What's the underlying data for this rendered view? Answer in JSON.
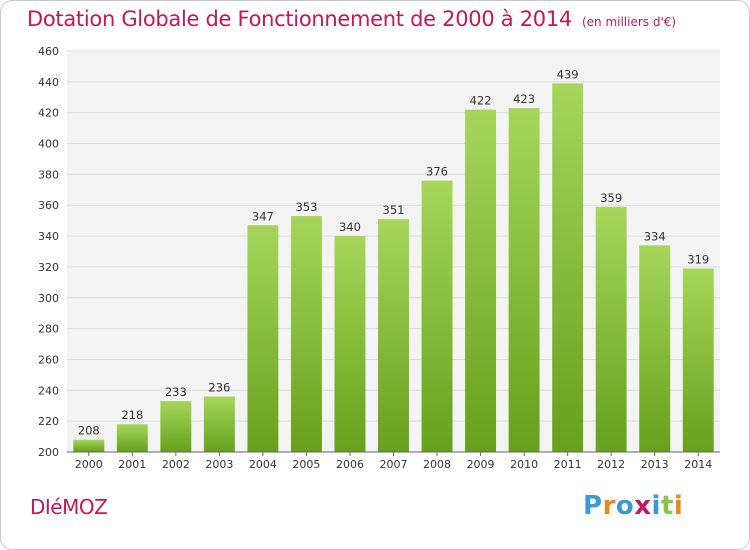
{
  "header": {
    "title": "Dotation Globale de Fonctionnement de 2000 à 2014",
    "subtitle": "(en milliers d'€)"
  },
  "footer": {
    "commune": "DIéMOZ",
    "logo_text": "Proxiti",
    "logo_colors": [
      "#3a9ad9",
      "#e8891a",
      "#3a9ad9",
      "#c2185b",
      "#3a9ad9",
      "#8bc34a",
      "#e8891a"
    ]
  },
  "chart_data": {
    "type": "bar",
    "title": "Dotation Globale de Fonctionnement de 2000 à 2014",
    "subtitle": "(en milliers d'€)",
    "categories": [
      "2000",
      "2001",
      "2002",
      "2003",
      "2004",
      "2005",
      "2006",
      "2007",
      "2008",
      "2009",
      "2010",
      "2011",
      "2012",
      "2013",
      "2014"
    ],
    "values": [
      208,
      218,
      233,
      236,
      347,
      353,
      340,
      351,
      376,
      422,
      423,
      439,
      359,
      334,
      319
    ],
    "data_labels": [
      "208",
      "218",
      "233",
      "236",
      "347",
      "353",
      "340",
      "351",
      "376",
      "422",
      "423",
      "439",
      "359",
      "334",
      "319"
    ],
    "ylim": [
      200,
      460
    ],
    "yticks": [
      200,
      220,
      240,
      260,
      280,
      300,
      320,
      340,
      360,
      380,
      400,
      420,
      440,
      460
    ],
    "grid": true,
    "legend": "none",
    "bar_color": "#8bc34a",
    "bar_color_dark": "#6aa120",
    "grid_color": "#dddddd",
    "plot_bg": "#f3f3f3"
  }
}
